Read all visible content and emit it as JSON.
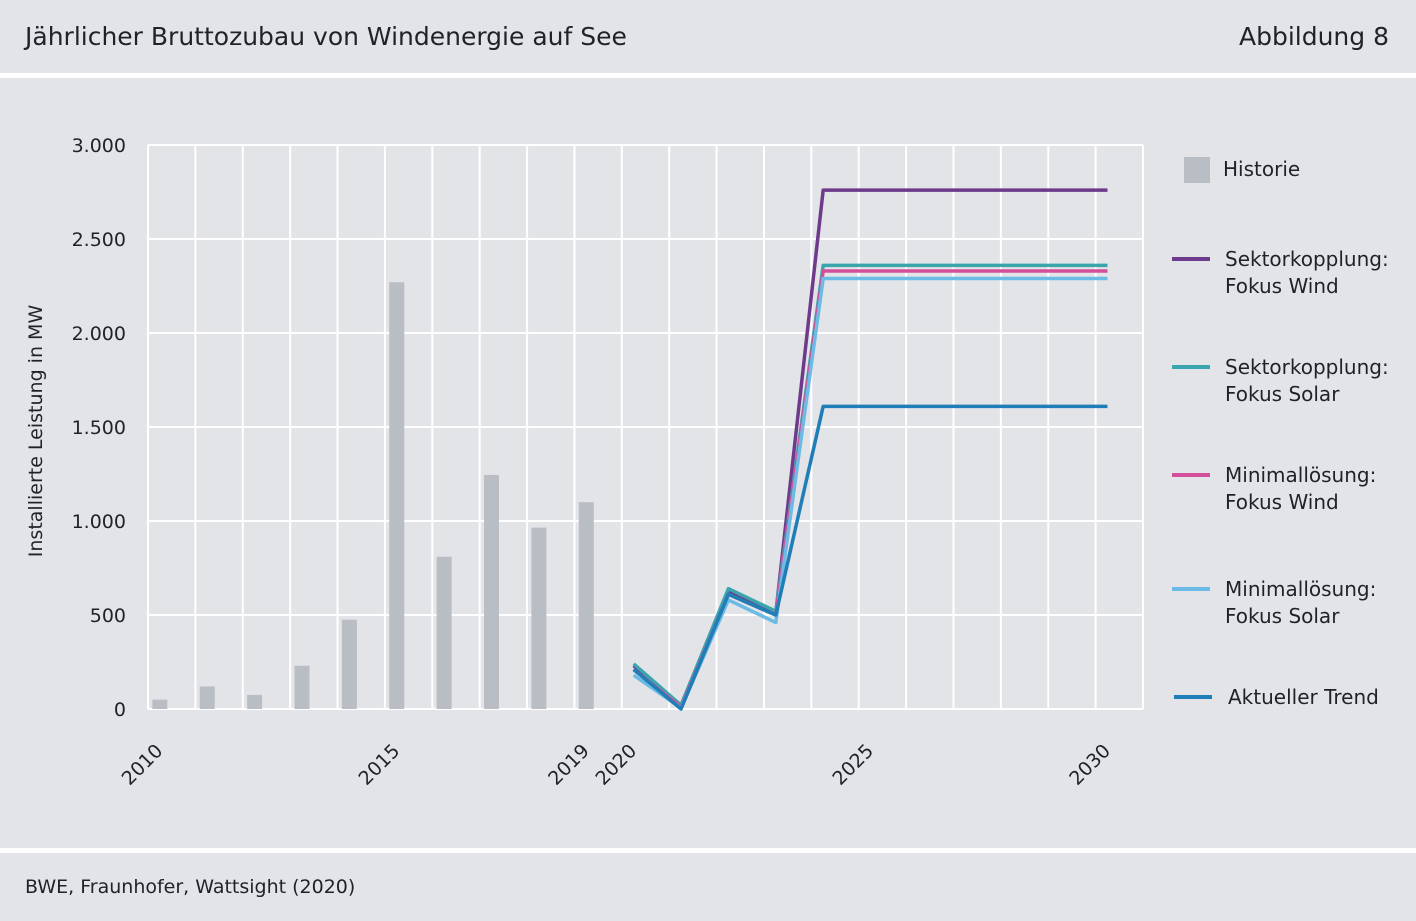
{
  "header": {
    "title": "Jährlicher Bruttozubau von Windenergie auf See",
    "figure": "Abbildung 8"
  },
  "footer": {
    "source": "BWE, Fraunhofer, Wattsight (2020)"
  },
  "colors": {
    "background": "#e3e4e8",
    "grid": "#ffffff",
    "historie": "#b9bdc4",
    "sektor_wind": "#6e3b8c",
    "sektor_solar": "#3aa5ad",
    "minimal_wind": "#d34f99",
    "minimal_solar": "#6bbbe6",
    "trend": "#1f7db8"
  },
  "chart_data": {
    "type": "bar+line",
    "ylabel": "Installierte Leistung in MW",
    "xlabel": "",
    "ylim": [
      0,
      3000
    ],
    "y_ticks": [
      0,
      500,
      1000,
      1500,
      2000,
      2500,
      3000
    ],
    "y_tick_labels": [
      "0",
      "500",
      "1.000",
      "1.500",
      "2.000",
      "2.500",
      "3.000"
    ],
    "xlim": [
      2009.75,
      2030.75
    ],
    "x_tick_labels": [
      "2010",
      "2015",
      "2019",
      "2020",
      "2025",
      "2030"
    ],
    "x_tick_positions": [
      2010,
      2015,
      2019,
      2020,
      2025,
      2030
    ],
    "grid": true,
    "legend_position": "right",
    "bars": {
      "name": "Historie",
      "x": [
        2010,
        2011,
        2012,
        2013,
        2014,
        2015,
        2016,
        2017,
        2018,
        2019
      ],
      "values": [
        50,
        120,
        75,
        230,
        475,
        2270,
        810,
        1245,
        965,
        1100
      ]
    },
    "series": [
      {
        "name": "Sektorkopplung: Fokus Wind",
        "name_lines": [
          "Sektorkopplung:",
          "Fokus Wind"
        ],
        "color_key": "sektor_wind",
        "x": [
          2020,
          2021,
          2022,
          2023,
          2024,
          2030
        ],
        "values": [
          230,
          20,
          630,
          510,
          2760,
          2760
        ]
      },
      {
        "name": "Sektorkopplung: Fokus Solar",
        "name_lines": [
          "Sektorkopplung:",
          "Fokus Solar"
        ],
        "color_key": "sektor_solar",
        "x": [
          2020,
          2021,
          2022,
          2023,
          2024,
          2030
        ],
        "values": [
          240,
          20,
          640,
          520,
          2360,
          2360
        ]
      },
      {
        "name": "Minimallösung: Fokus Wind",
        "name_lines": [
          "Minimallösung:",
          "Fokus Wind"
        ],
        "color_key": "minimal_wind",
        "x": [
          2020,
          2021,
          2022,
          2023,
          2024,
          2030
        ],
        "values": [
          210,
          10,
          610,
          500,
          2330,
          2330
        ]
      },
      {
        "name": "Minimallösung: Fokus Solar",
        "name_lines": [
          "Minimallösung:",
          "Fokus Solar"
        ],
        "color_key": "minimal_solar",
        "x": [
          2020,
          2021,
          2022,
          2023,
          2024,
          2030
        ],
        "values": [
          180,
          5,
          580,
          460,
          2290,
          2290
        ]
      },
      {
        "name": "Aktueller Trend",
        "name_lines": [
          "Aktueller Trend"
        ],
        "color_key": "trend",
        "x": [
          2020,
          2021,
          2022,
          2023,
          2024,
          2030
        ],
        "values": [
          210,
          0,
          610,
          500,
          1610,
          1610
        ]
      }
    ]
  }
}
